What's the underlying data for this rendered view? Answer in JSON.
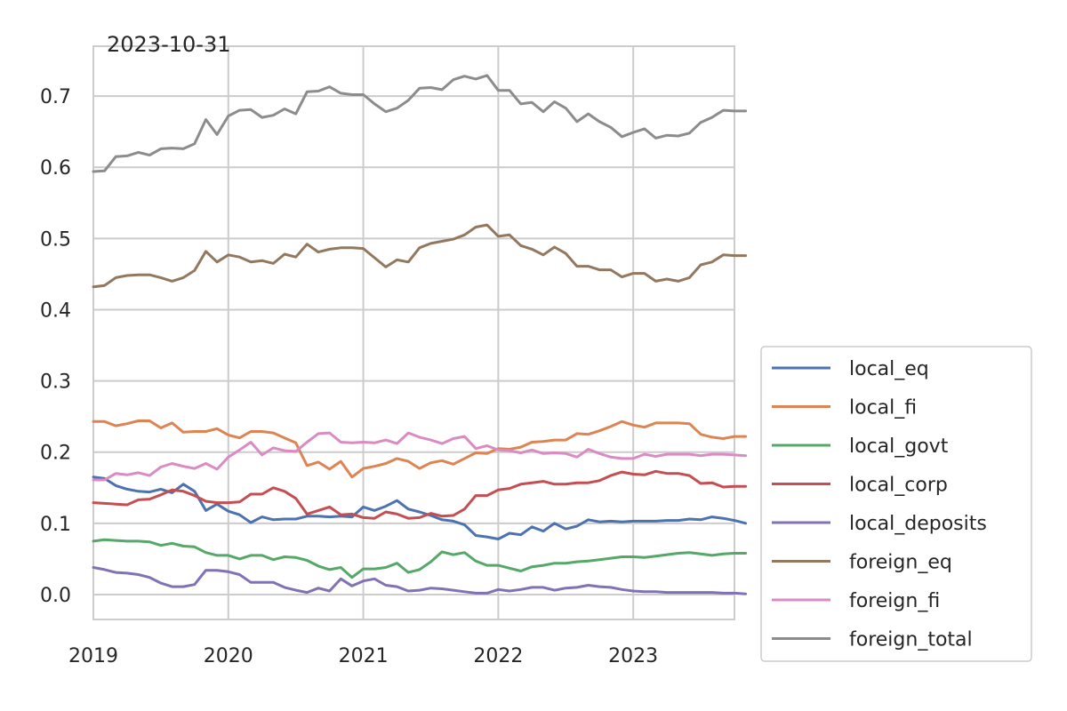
{
  "chart_data": {
    "type": "line",
    "title": "2023-10-31",
    "xlabel": "",
    "ylabel": "",
    "x_start": "2019-01",
    "x_end": "2023-10",
    "xlim": [
      "2019-01",
      "2023-10"
    ],
    "ylim": [
      -0.035,
      0.77
    ],
    "x_ticks": [
      "2019",
      "2020",
      "2021",
      "2022",
      "2023"
    ],
    "y_ticks": [
      "0.0",
      "0.1",
      "0.2",
      "0.3",
      "0.4",
      "0.5",
      "0.6",
      "0.7"
    ],
    "grid": true,
    "legend_position": "outside-right-bottom",
    "series": [
      {
        "name": "local_eq",
        "color": "#4c72b0",
        "values": [
          0.165,
          0.163,
          0.153,
          0.148,
          0.145,
          0.144,
          0.148,
          0.143,
          0.155,
          0.145,
          0.118,
          0.127,
          0.117,
          0.112,
          0.101,
          0.109,
          0.105,
          0.106,
          0.106,
          0.11,
          0.11,
          0.109,
          0.11,
          0.109,
          0.123,
          0.118,
          0.124,
          0.132,
          0.12,
          0.116,
          0.111,
          0.105,
          0.103,
          0.098,
          0.083,
          0.081,
          0.078,
          0.086,
          0.084,
          0.095,
          0.089,
          0.1,
          0.092,
          0.096,
          0.105,
          0.102,
          0.103,
          0.102,
          0.103,
          0.103,
          0.103,
          0.104,
          0.104,
          0.106,
          0.105,
          0.109,
          0.107,
          0.104,
          0.1
        ]
      },
      {
        "name": "local_fi",
        "color": "#dd8452",
        "values": [
          0.243,
          0.243,
          0.237,
          0.24,
          0.244,
          0.244,
          0.234,
          0.241,
          0.228,
          0.229,
          0.229,
          0.233,
          0.224,
          0.22,
          0.229,
          0.229,
          0.227,
          0.22,
          0.213,
          0.181,
          0.186,
          0.176,
          0.187,
          0.165,
          0.177,
          0.18,
          0.184,
          0.191,
          0.187,
          0.177,
          0.185,
          0.188,
          0.183,
          0.191,
          0.199,
          0.198,
          0.205,
          0.204,
          0.207,
          0.214,
          0.215,
          0.217,
          0.217,
          0.226,
          0.225,
          0.23,
          0.236,
          0.243,
          0.238,
          0.235,
          0.241,
          0.241,
          0.241,
          0.24,
          0.225,
          0.221,
          0.219,
          0.222,
          0.222
        ]
      },
      {
        "name": "local_govt",
        "color": "#55a868",
        "values": [
          0.075,
          0.077,
          0.076,
          0.075,
          0.075,
          0.074,
          0.069,
          0.072,
          0.068,
          0.067,
          0.059,
          0.055,
          0.055,
          0.05,
          0.055,
          0.055,
          0.049,
          0.053,
          0.052,
          0.048,
          0.04,
          0.035,
          0.038,
          0.024,
          0.036,
          0.036,
          0.038,
          0.044,
          0.031,
          0.035,
          0.046,
          0.06,
          0.056,
          0.059,
          0.047,
          0.041,
          0.041,
          0.037,
          0.033,
          0.039,
          0.041,
          0.044,
          0.044,
          0.046,
          0.047,
          0.049,
          0.051,
          0.053,
          0.053,
          0.052,
          0.054,
          0.056,
          0.058,
          0.059,
          0.057,
          0.055,
          0.057,
          0.058,
          0.058
        ]
      },
      {
        "name": "local_corp",
        "color": "#c44e52",
        "values": [
          0.129,
          0.128,
          0.127,
          0.126,
          0.133,
          0.134,
          0.14,
          0.147,
          0.145,
          0.139,
          0.131,
          0.129,
          0.129,
          0.13,
          0.141,
          0.141,
          0.15,
          0.145,
          0.135,
          0.113,
          0.118,
          0.123,
          0.112,
          0.113,
          0.108,
          0.107,
          0.116,
          0.113,
          0.107,
          0.108,
          0.114,
          0.11,
          0.111,
          0.12,
          0.139,
          0.139,
          0.147,
          0.149,
          0.155,
          0.157,
          0.159,
          0.155,
          0.155,
          0.157,
          0.157,
          0.16,
          0.167,
          0.172,
          0.169,
          0.168,
          0.173,
          0.17,
          0.17,
          0.167,
          0.156,
          0.157,
          0.151,
          0.152,
          0.152
        ]
      },
      {
        "name": "local_deposits",
        "color": "#8172b3",
        "values": [
          0.038,
          0.035,
          0.031,
          0.03,
          0.028,
          0.024,
          0.016,
          0.011,
          0.011,
          0.014,
          0.034,
          0.034,
          0.032,
          0.028,
          0.017,
          0.017,
          0.017,
          0.01,
          0.006,
          0.003,
          0.009,
          0.005,
          0.022,
          0.012,
          0.019,
          0.022,
          0.013,
          0.011,
          0.005,
          0.006,
          0.009,
          0.008,
          0.006,
          0.004,
          0.002,
          0.002,
          0.007,
          0.005,
          0.007,
          0.01,
          0.01,
          0.006,
          0.009,
          0.01,
          0.013,
          0.011,
          0.01,
          0.007,
          0.005,
          0.004,
          0.004,
          0.003,
          0.003,
          0.003,
          0.003,
          0.003,
          0.002,
          0.002,
          0.001
        ]
      },
      {
        "name": "foreign_eq",
        "color": "#937860",
        "values": [
          0.432,
          0.434,
          0.445,
          0.448,
          0.449,
          0.449,
          0.445,
          0.44,
          0.445,
          0.455,
          0.482,
          0.467,
          0.477,
          0.474,
          0.467,
          0.469,
          0.465,
          0.478,
          0.474,
          0.492,
          0.481,
          0.485,
          0.487,
          0.487,
          0.486,
          0.473,
          0.46,
          0.47,
          0.467,
          0.487,
          0.493,
          0.496,
          0.499,
          0.505,
          0.516,
          0.519,
          0.503,
          0.505,
          0.49,
          0.485,
          0.477,
          0.488,
          0.479,
          0.461,
          0.461,
          0.456,
          0.456,
          0.446,
          0.451,
          0.451,
          0.44,
          0.443,
          0.44,
          0.445,
          0.463,
          0.467,
          0.477,
          0.476,
          0.476
        ]
      },
      {
        "name": "foreign_fi",
        "color": "#da8bc3",
        "values": [
          0.161,
          0.161,
          0.17,
          0.168,
          0.171,
          0.167,
          0.179,
          0.184,
          0.18,
          0.177,
          0.184,
          0.176,
          0.193,
          0.203,
          0.214,
          0.196,
          0.206,
          0.202,
          0.201,
          0.214,
          0.226,
          0.227,
          0.214,
          0.213,
          0.214,
          0.213,
          0.217,
          0.212,
          0.227,
          0.221,
          0.217,
          0.212,
          0.219,
          0.222,
          0.205,
          0.209,
          0.203,
          0.202,
          0.199,
          0.203,
          0.198,
          0.199,
          0.198,
          0.193,
          0.204,
          0.198,
          0.193,
          0.191,
          0.191,
          0.197,
          0.194,
          0.197,
          0.197,
          0.197,
          0.195,
          0.197,
          0.197,
          0.196,
          0.195
        ]
      },
      {
        "name": "foreign_total",
        "color": "#8c8c8c",
        "values": [
          0.594,
          0.595,
          0.615,
          0.616,
          0.621,
          0.617,
          0.626,
          0.627,
          0.626,
          0.633,
          0.667,
          0.646,
          0.672,
          0.68,
          0.681,
          0.67,
          0.673,
          0.682,
          0.675,
          0.706,
          0.707,
          0.713,
          0.704,
          0.702,
          0.702,
          0.689,
          0.678,
          0.683,
          0.694,
          0.711,
          0.712,
          0.709,
          0.723,
          0.728,
          0.724,
          0.729,
          0.708,
          0.708,
          0.689,
          0.691,
          0.678,
          0.692,
          0.683,
          0.664,
          0.675,
          0.664,
          0.656,
          0.643,
          0.649,
          0.654,
          0.641,
          0.645,
          0.644,
          0.648,
          0.663,
          0.67,
          0.68,
          0.679,
          0.679
        ]
      }
    ]
  }
}
